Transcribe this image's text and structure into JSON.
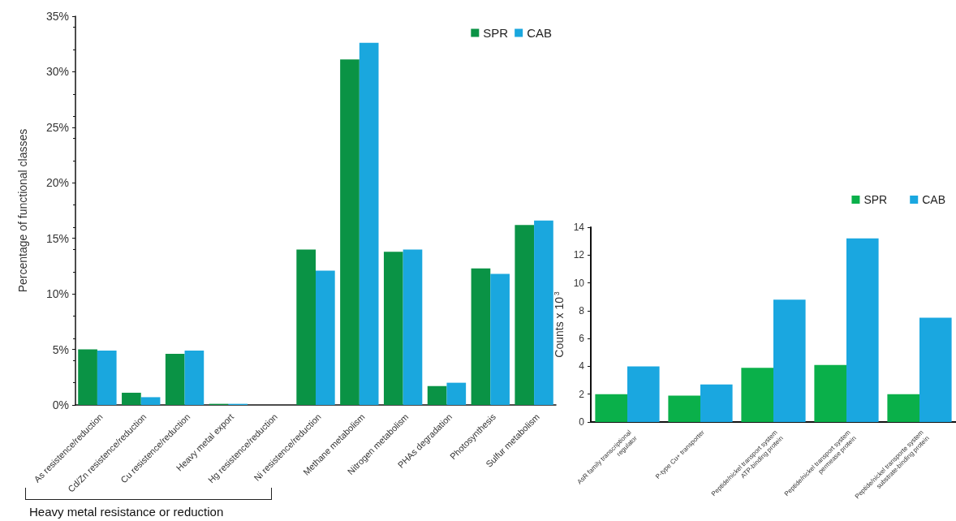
{
  "chart_data": [
    {
      "type": "bar",
      "ylabel": "Percentage of functional classes",
      "categories": [
        "As resistence/reduction",
        "Cd/Zn resistence/reduction",
        "Cu resistence/reduction",
        "Heavy metal export",
        "Hg resistence/reduction",
        "Ni resistence/reduction",
        "Methane metabolism",
        "Nitrogen metabolism",
        "PHAs degradation",
        "Photosynthesis",
        "Sulfur metabolism"
      ],
      "series": [
        {
          "name": "SPR",
          "color": "#0a9345",
          "values": [
            5.0,
            1.1,
            4.6,
            0.1,
            0,
            14.0,
            31.1,
            13.8,
            1.7,
            12.3,
            16.2
          ]
        },
        {
          "name": "CAB",
          "color": "#1aa7de",
          "values": [
            4.9,
            0.7,
            4.9,
            0.1,
            0,
            12.1,
            32.6,
            14.0,
            2.0,
            11.8,
            16.6
          ]
        }
      ],
      "ylim": [
        0,
        35
      ],
      "yticks": [
        {
          "value": 0,
          "label": "0%"
        },
        {
          "value": 5,
          "label": "5%"
        },
        {
          "value": 10,
          "label": "10%"
        },
        {
          "value": 15,
          "label": "15%"
        },
        {
          "value": 20,
          "label": "20%"
        },
        {
          "value": 25,
          "label": "25%"
        },
        {
          "value": 30,
          "label": "30%"
        },
        {
          "value": 35,
          "label": "35%"
        }
      ],
      "annotations": [
        "Heavy metal resistance or reduction"
      ],
      "grid": false,
      "legend": "top right"
    },
    {
      "type": "bar",
      "ylabel": "Counts x 10$^{3}$",
      "categories": [
        "AsR family transcriptional\nregulator",
        "P-type Cu+ transporter",
        "Peptide/nickel transport system\nATP-binding protein",
        "Peptide/nickel transport system\npermease protein",
        "Peptide/nickel transporte system\nsubstrate-binding protein"
      ],
      "series": [
        {
          "name": "SPR",
          "color": "#0ab04a",
          "values": [
            2.0,
            1.9,
            3.9,
            4.1,
            2.0
          ]
        },
        {
          "name": "CAB",
          "color": "#1aa7e0",
          "values": [
            4.0,
            2.7,
            8.8,
            13.2,
            7.5
          ]
        }
      ],
      "ylim": [
        0,
        14
      ],
      "yticks": [
        0,
        2,
        4,
        6,
        8,
        10,
        12,
        14
      ],
      "grid": false,
      "legend": "top right"
    }
  ]
}
